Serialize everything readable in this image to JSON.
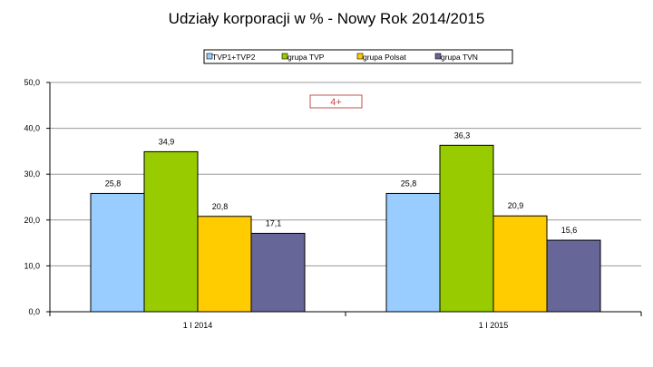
{
  "chart_data": {
    "type": "bar",
    "title": "Udziały korporacji  w % - Nowy Rok 2014/2015",
    "categories": [
      "1 I 2014",
      "1 I 2015"
    ],
    "series": [
      {
        "name": "TVP1+TVP2",
        "values": [
          25.8,
          25.8
        ],
        "labels": [
          "25,8",
          "25,8"
        ],
        "color": "#99ccff"
      },
      {
        "name": "grupa TVP",
        "values": [
          34.9,
          36.3
        ],
        "labels": [
          "34,9",
          "36,3"
        ],
        "color": "#99cc00"
      },
      {
        "name": "grupa Polsat",
        "values": [
          20.8,
          20.9
        ],
        "labels": [
          "20,8",
          "20,9"
        ],
        "color": "#ffcc00"
      },
      {
        "name": "grupa TVN",
        "values": [
          17.1,
          15.6
        ],
        "labels": [
          "17,1",
          "15,6"
        ],
        "color": "#666699"
      }
    ],
    "ylim": [
      0,
      50
    ],
    "yticks": [
      "0,0",
      "10,0",
      "20,0",
      "30,0",
      "40,0",
      "50,0"
    ],
    "grid": true,
    "legend_position": "top",
    "annotation": "4+"
  }
}
